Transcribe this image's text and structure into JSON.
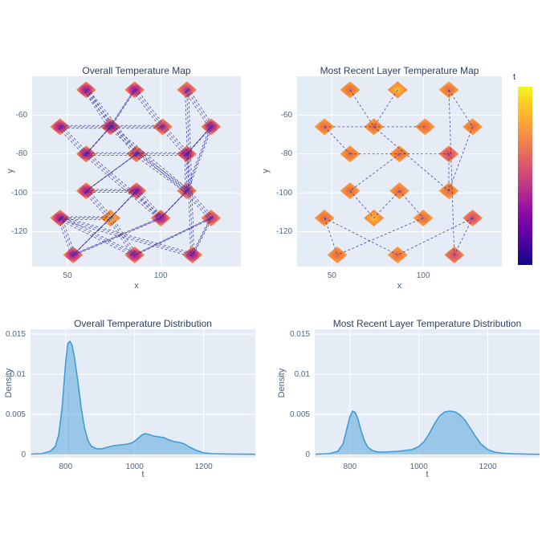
{
  "style": {
    "background": "#ffffff",
    "plot_bg": "#e5ecf6",
    "grid_color": "#ffffff",
    "title_color": "#2a3f5f",
    "tick_color": "#506784",
    "trajectory_line_color": "#2d2a9e",
    "curve_line_color": "#3f9cd8",
    "curve_fill_color": "rgba(63,156,216,0.45)",
    "marker_core_colors": {
      "purple": [
        "#9c179e",
        "#c13b82",
        "#ed7057",
        "#f9993d"
      ],
      "magenta": [
        "#b02791",
        "#d8576b",
        "#ee7a51",
        "#f9993d"
      ],
      "orange": [
        "#e26952",
        "#f0803c",
        "#f89540",
        "#fba238"
      ],
      "yellow": [
        "#fdc527",
        "#fb9d3a",
        "#f58c3d",
        "#f2823b"
      ],
      "red": [
        "#cc4778",
        "#e16462",
        "#ee7a51",
        "#fba238"
      ]
    }
  },
  "colorbar": {
    "title": "t",
    "gradient_stops": [
      "#f0f921",
      "#fdca26",
      "#fca636",
      "#f1844b",
      "#e16462",
      "#cc4778",
      "#b12a90",
      "#8f0da4",
      "#6a00a8",
      "#41049d",
      "#0d0887"
    ]
  },
  "chart_data": [
    {
      "id": "overall_map",
      "type": "scatter",
      "title": "Overall Temperature Map",
      "xlabel": "x",
      "ylabel": "y",
      "x_range": [
        31,
        143
      ],
      "y_range": [
        -138,
        -40
      ],
      "x_tick_values": [
        50,
        100
      ],
      "x_tick_labels": [
        "50",
        "100"
      ],
      "y_tick_values": [
        -60,
        -80,
        -100,
        -120
      ],
      "y_tick_labels": [
        "-60",
        "-80",
        "-100",
        "-120"
      ],
      "grid": true,
      "line_passes": 3,
      "markers": [
        {
          "x": 60,
          "y": -47,
          "core": "purple"
        },
        {
          "x": 86,
          "y": -47,
          "core": "purple"
        },
        {
          "x": 114,
          "y": -47,
          "core": "magenta"
        },
        {
          "x": 46,
          "y": -66,
          "core": "purple"
        },
        {
          "x": 73,
          "y": -66,
          "core": "purple"
        },
        {
          "x": 101,
          "y": -66,
          "core": "magenta"
        },
        {
          "x": 127,
          "y": -66,
          "core": "purple"
        },
        {
          "x": 60,
          "y": -80,
          "core": "purple"
        },
        {
          "x": 87,
          "y": -80,
          "core": "magenta"
        },
        {
          "x": 114,
          "y": -80,
          "core": "purple"
        },
        {
          "x": 60,
          "y": -99,
          "core": "purple"
        },
        {
          "x": 87,
          "y": -99,
          "core": "purple"
        },
        {
          "x": 114,
          "y": -99,
          "core": "magenta"
        },
        {
          "x": 46,
          "y": -113,
          "core": "purple"
        },
        {
          "x": 73,
          "y": -113,
          "core": "yellow"
        },
        {
          "x": 100,
          "y": -113,
          "core": "purple"
        },
        {
          "x": 127,
          "y": -113,
          "core": "magenta"
        },
        {
          "x": 53,
          "y": -132,
          "core": "purple"
        },
        {
          "x": 86,
          "y": -132,
          "core": "purple"
        },
        {
          "x": 117,
          "y": -132,
          "core": "purple"
        }
      ],
      "path_segments": [
        [
          0,
          4
        ],
        [
          1,
          4
        ],
        [
          1,
          5
        ],
        [
          0,
          8
        ],
        [
          2,
          6
        ],
        [
          2,
          19
        ],
        [
          3,
          4
        ],
        [
          4,
          5
        ],
        [
          3,
          7
        ],
        [
          4,
          7
        ],
        [
          7,
          8
        ],
        [
          8,
          9
        ],
        [
          5,
          9
        ],
        [
          4,
          12
        ],
        [
          8,
          12
        ],
        [
          8,
          10
        ],
        [
          7,
          15
        ],
        [
          10,
          11
        ],
        [
          10,
          14
        ],
        [
          11,
          14
        ],
        [
          11,
          15
        ],
        [
          12,
          15
        ],
        [
          12,
          16
        ],
        [
          13,
          14
        ],
        [
          13,
          17
        ],
        [
          13,
          18
        ],
        [
          14,
          17
        ],
        [
          14,
          18
        ],
        [
          15,
          17
        ],
        [
          16,
          18
        ],
        [
          16,
          19
        ],
        [
          13,
          19
        ],
        [
          6,
          12
        ],
        [
          6,
          9
        ],
        [
          9,
          12
        ]
      ]
    },
    {
      "id": "recent_map",
      "type": "scatter",
      "title": "Most Recent Layer Temperature Map",
      "xlabel": "x",
      "ylabel": "y",
      "x_range": [
        31,
        143
      ],
      "y_range": [
        -138,
        -40
      ],
      "x_tick_values": [
        50,
        100
      ],
      "x_tick_labels": [
        "50",
        "100"
      ],
      "y_tick_values": [
        -60,
        -80,
        -100,
        -120
      ],
      "y_tick_labels": [
        "-60",
        "-80",
        "-100",
        "-120"
      ],
      "grid": true,
      "line_passes": 1,
      "markers": [
        {
          "x": 60,
          "y": -47,
          "core": "orange"
        },
        {
          "x": 86,
          "y": -47,
          "core": "yellow"
        },
        {
          "x": 114,
          "y": -47,
          "core": "orange"
        },
        {
          "x": 46,
          "y": -66,
          "core": "orange"
        },
        {
          "x": 73,
          "y": -66,
          "core": "orange"
        },
        {
          "x": 101,
          "y": -66,
          "core": "orange"
        },
        {
          "x": 127,
          "y": -66,
          "core": "orange"
        },
        {
          "x": 60,
          "y": -80,
          "core": "orange"
        },
        {
          "x": 87,
          "y": -80,
          "core": "orange"
        },
        {
          "x": 114,
          "y": -80,
          "core": "red"
        },
        {
          "x": 60,
          "y": -99,
          "core": "orange"
        },
        {
          "x": 87,
          "y": -99,
          "core": "orange"
        },
        {
          "x": 114,
          "y": -99,
          "core": "orange"
        },
        {
          "x": 46,
          "y": -113,
          "core": "orange"
        },
        {
          "x": 73,
          "y": -113,
          "core": "yellow"
        },
        {
          "x": 100,
          "y": -113,
          "core": "orange"
        },
        {
          "x": 127,
          "y": -113,
          "core": "red"
        },
        {
          "x": 53,
          "y": -132,
          "core": "orange"
        },
        {
          "x": 86,
          "y": -132,
          "core": "orange"
        },
        {
          "x": 117,
          "y": -132,
          "core": "red"
        }
      ],
      "path_segments": [
        [
          0,
          4
        ],
        [
          1,
          4
        ],
        [
          2,
          6
        ],
        [
          2,
          19
        ],
        [
          3,
          4
        ],
        [
          3,
          7
        ],
        [
          4,
          5
        ],
        [
          4,
          12
        ],
        [
          6,
          12
        ],
        [
          7,
          9
        ],
        [
          8,
          10
        ],
        [
          10,
          14
        ],
        [
          11,
          14
        ],
        [
          11,
          15
        ],
        [
          13,
          17
        ],
        [
          13,
          18
        ],
        [
          15,
          17
        ],
        [
          16,
          18
        ],
        [
          16,
          19
        ],
        [
          9,
          12
        ]
      ]
    },
    {
      "id": "overall_dist",
      "type": "area",
      "title": "Overall Temperature Distribution",
      "xlabel": "t",
      "ylabel": "Density",
      "x_range": [
        698,
        1350
      ],
      "y_range": [
        -0.0004,
        0.0156
      ],
      "x_tick_values": [
        800,
        1000,
        1200
      ],
      "x_tick_labels": [
        "800",
        "1000",
        "1200"
      ],
      "y_tick_values": [
        0,
        0.005,
        0.01,
        0.015
      ],
      "y_tick_labels": [
        "0",
        "0.005",
        "0.01",
        "0.015"
      ],
      "grid": true,
      "x": [
        700,
        730,
        755,
        770,
        780,
        790,
        800,
        806,
        812,
        818,
        825,
        835,
        845,
        855,
        865,
        875,
        890,
        905,
        920,
        940,
        960,
        980,
        995,
        1010,
        1020,
        1030,
        1040,
        1055,
        1070,
        1085,
        1100,
        1115,
        1130,
        1145,
        1160,
        1180,
        1200,
        1225,
        1250,
        1280,
        1310,
        1340,
        1350
      ],
      "density": [
        5e-05,
        0.0001,
        0.0004,
        0.001,
        0.0025,
        0.006,
        0.0115,
        0.0138,
        0.0141,
        0.0137,
        0.0122,
        0.0092,
        0.0058,
        0.0032,
        0.0017,
        0.001,
        0.0007,
        0.0007,
        0.0009,
        0.0011,
        0.0012,
        0.0013,
        0.0015,
        0.002,
        0.0024,
        0.0026,
        0.0025,
        0.0023,
        0.0022,
        0.0021,
        0.0018,
        0.0016,
        0.0015,
        0.0013,
        0.0009,
        0.0005,
        0.0002,
        0.0001,
        7e-05,
        5e-05,
        4e-05,
        3e-05,
        2e-05
      ]
    },
    {
      "id": "recent_dist",
      "type": "area",
      "title": "Most Recent Layer Temperature Distribution",
      "xlabel": "t",
      "ylabel": "Density",
      "x_range": [
        698,
        1350
      ],
      "y_range": [
        -0.0004,
        0.0156
      ],
      "x_tick_values": [
        800,
        1000,
        1200
      ],
      "x_tick_labels": [
        "800",
        "1000",
        "1200"
      ],
      "y_tick_values": [
        0,
        0.005,
        0.01,
        0.015
      ],
      "y_tick_labels": [
        "0",
        "0.005",
        "0.01",
        "0.015"
      ],
      "grid": true,
      "x": [
        700,
        740,
        765,
        780,
        790,
        800,
        808,
        816,
        824,
        832,
        842,
        852,
        865,
        880,
        900,
        920,
        940,
        960,
        980,
        1000,
        1015,
        1030,
        1045,
        1060,
        1075,
        1090,
        1105,
        1120,
        1135,
        1150,
        1165,
        1180,
        1200,
        1220,
        1245,
        1275,
        1310,
        1350
      ],
      "density": [
        3e-05,
        0.0001,
        0.0004,
        0.0013,
        0.003,
        0.0047,
        0.0054,
        0.0052,
        0.0043,
        0.003,
        0.0017,
        0.0009,
        0.0005,
        0.0003,
        0.0003,
        0.00035,
        0.0004,
        0.0005,
        0.0006,
        0.001,
        0.0016,
        0.0026,
        0.0038,
        0.0048,
        0.0053,
        0.0054,
        0.0053,
        0.0049,
        0.0042,
        0.0032,
        0.0022,
        0.0013,
        0.0006,
        0.0003,
        0.00015,
        8e-05,
        4e-05,
        2e-05
      ]
    }
  ]
}
